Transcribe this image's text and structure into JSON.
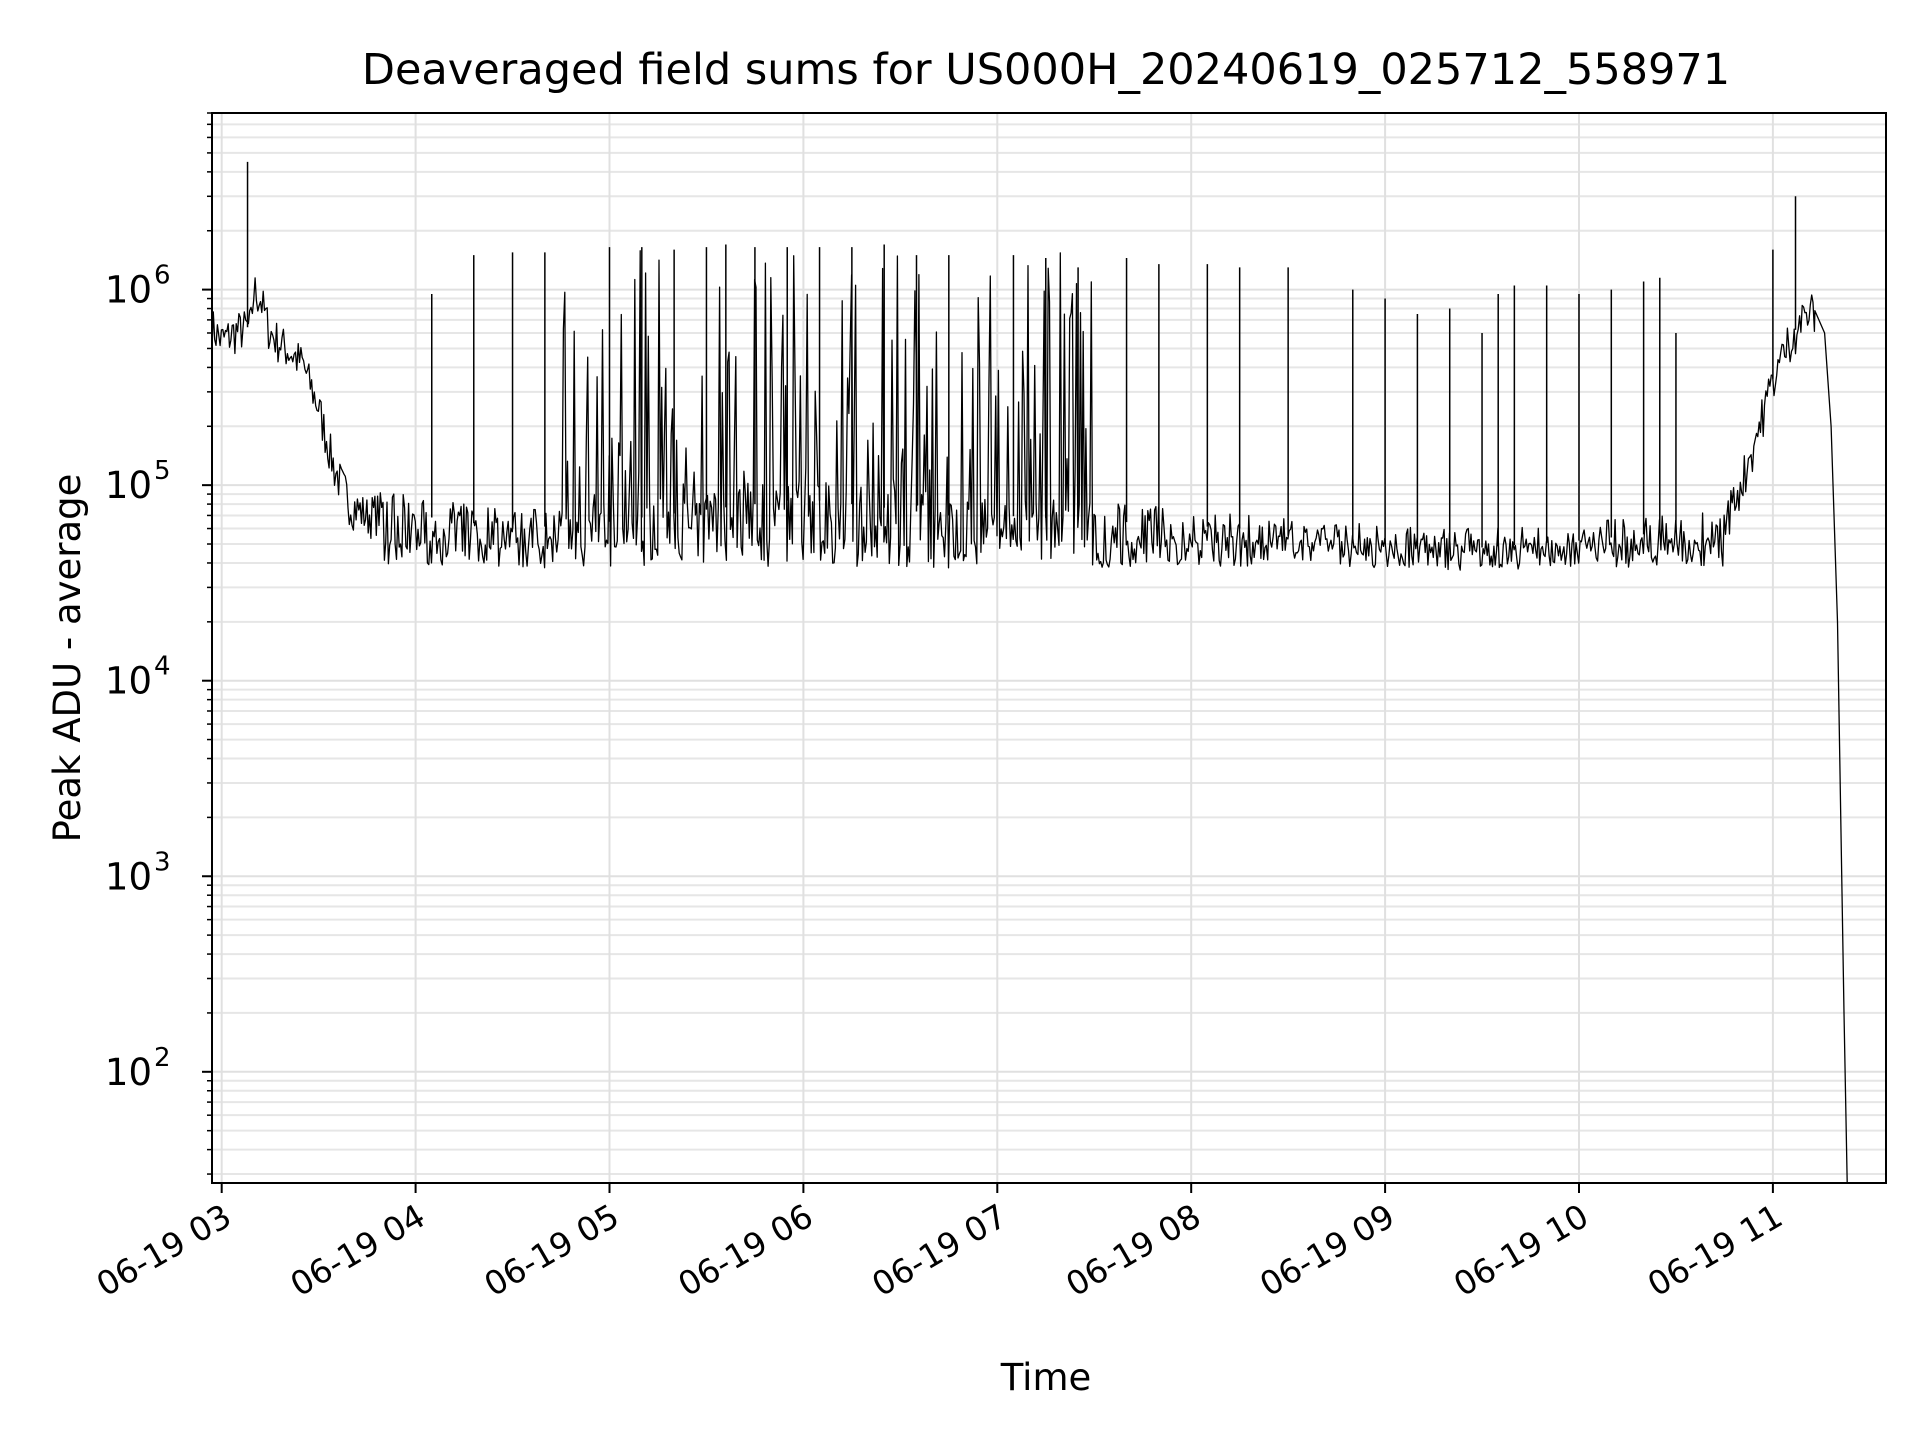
{
  "chart_data": {
    "type": "line",
    "title": "Deaveraged field sums for US000H_20240619_025712_558971",
    "xlabel": "Time",
    "ylabel": "Peak ADU - average",
    "yscale": "log",
    "ylim": [
      27,
      8000000
    ],
    "xlim": [
      "2024-06-19 02:57",
      "2024-06-19 11:35"
    ],
    "grid": true,
    "grid_minor": true,
    "line_color": "#000000",
    "x_tick_labels": [
      "06-19 03",
      "06-19 04",
      "06-19 05",
      "06-19 06",
      "06-19 07",
      "06-19 08",
      "06-19 09",
      "06-19 10",
      "06-19 11"
    ],
    "x_ticks": [
      "2024-06-19 03:00",
      "2024-06-19 04:00",
      "2024-06-19 05:00",
      "2024-06-19 06:00",
      "2024-06-19 07:00",
      "2024-06-19 08:00",
      "2024-06-19 09:00",
      "2024-06-19 10:00",
      "2024-06-19 11:00"
    ],
    "y_ticks": [
      {
        "value": 100,
        "base": "10",
        "exp": "2"
      },
      {
        "value": 1000,
        "base": "10",
        "exp": "3"
      },
      {
        "value": 10000,
        "base": "10",
        "exp": "4"
      },
      {
        "value": 100000,
        "base": "10",
        "exp": "5"
      },
      {
        "value": 1000000,
        "base": "10",
        "exp": "6"
      }
    ],
    "series": [
      {
        "x": [
          "2024-06-19 02:57",
          "2024-06-19 03:00",
          "2024-06-19 03:05",
          "2024-06-19 03:09",
          "2024-06-19 03:10",
          "2024-06-19 03:12",
          "2024-06-19 03:15",
          "2024-06-19 03:20",
          "2024-06-19 03:25",
          "2024-06-19 03:30",
          "2024-06-19 03:35",
          "2024-06-19 03:40",
          "2024-06-19 03:45",
          "2024-06-19 03:50",
          "2024-06-19 04:00",
          "2024-06-19 04:15",
          "2024-06-19 04:30",
          "2024-06-19 04:45",
          "2024-06-19 05:00",
          "2024-06-19 05:15",
          "2024-06-19 05:30",
          "2024-06-19 05:45",
          "2024-06-19 06:00",
          "2024-06-19 06:15",
          "2024-06-19 06:30",
          "2024-06-19 06:45",
          "2024-06-19 07:00",
          "2024-06-19 07:15",
          "2024-06-19 07:30",
          "2024-06-19 07:45",
          "2024-06-19 08:00",
          "2024-06-19 08:15",
          "2024-06-19 08:30",
          "2024-06-19 08:45",
          "2024-06-19 09:00",
          "2024-06-19 09:15",
          "2024-06-19 09:30",
          "2024-06-19 09:45",
          "2024-06-19 10:00",
          "2024-06-19 10:15",
          "2024-06-19 10:30",
          "2024-06-19 10:40",
          "2024-06-19 10:45",
          "2024-06-19 10:50",
          "2024-06-19 10:55",
          "2024-06-19 11:00",
          "2024-06-19 11:05",
          "2024-06-19 11:10",
          "2024-06-19 11:13",
          "2024-06-19 11:16",
          "2024-06-19 11:18",
          "2024-06-19 11:20",
          "2024-06-19 11:22",
          "2024-06-19 11:23"
        ],
        "y": [
          650000,
          550000,
          620000,
          650000,
          1000000,
          900000,
          600000,
          500000,
          420000,
          250000,
          120000,
          80000,
          70000,
          75000,
          70000,
          65000,
          60000,
          62000,
          65000,
          70000,
          75000,
          80000,
          85000,
          80000,
          75000,
          70000,
          70000,
          68000,
          66000,
          64000,
          62000,
          60000,
          55000,
          52000,
          50000,
          50000,
          48000,
          50000,
          52000,
          55000,
          58000,
          60000,
          65000,
          100000,
          180000,
          350000,
          550000,
          750000,
          780000,
          600000,
          200000,
          20000,
          200,
          27
        ]
      }
    ],
    "spikes": {
      "x": [
        "2024-06-19 03:08",
        "2024-06-19 04:05",
        "2024-06-19 04:18",
        "2024-06-19 04:30",
        "2024-06-19 04:40",
        "2024-06-19 05:00",
        "2024-06-19 05:10",
        "2024-06-19 05:20",
        "2024-06-19 05:30",
        "2024-06-19 05:36",
        "2024-06-19 05:45",
        "2024-06-19 05:55",
        "2024-06-19 06:05",
        "2024-06-19 06:15",
        "2024-06-19 06:25",
        "2024-06-19 06:35",
        "2024-06-19 06:45",
        "2024-06-19 07:05",
        "2024-06-19 07:15",
        "2024-06-19 07:25",
        "2024-06-19 07:40",
        "2024-06-19 07:50",
        "2024-06-19 08:05",
        "2024-06-19 08:15",
        "2024-06-19 08:30",
        "2024-06-19 08:50",
        "2024-06-19 09:00",
        "2024-06-19 09:10",
        "2024-06-19 09:20",
        "2024-06-19 09:30",
        "2024-06-19 09:35",
        "2024-06-19 09:40",
        "2024-06-19 09:50",
        "2024-06-19 10:00",
        "2024-06-19 10:10",
        "2024-06-19 10:20",
        "2024-06-19 10:25",
        "2024-06-19 10:30",
        "2024-06-19 11:00",
        "2024-06-19 11:07"
      ],
      "y": [
        4500000,
        950000,
        1500000,
        1550000,
        1550000,
        1650000,
        1650000,
        1600000,
        1650000,
        1700000,
        1650000,
        1650000,
        1650000,
        1650000,
        1700000,
        1500000,
        1500000,
        1500000,
        1450000,
        1300000,
        1450000,
        1350000,
        1350000,
        1300000,
        1300000,
        1000000,
        900000,
        750000,
        800000,
        600000,
        950000,
        1050000,
        1050000,
        950000,
        1000000,
        1100000,
        1150000,
        600000,
        1600000,
        3000000
      ]
    },
    "noise": {
      "x_range": [
        "2024-06-19 03:50",
        "2024-06-19 10:45"
      ],
      "low": 42000,
      "dense_range": [
        "2024-06-19 04:45",
        "2024-06-19 07:30"
      ],
      "dense_high": 1600000
    }
  }
}
